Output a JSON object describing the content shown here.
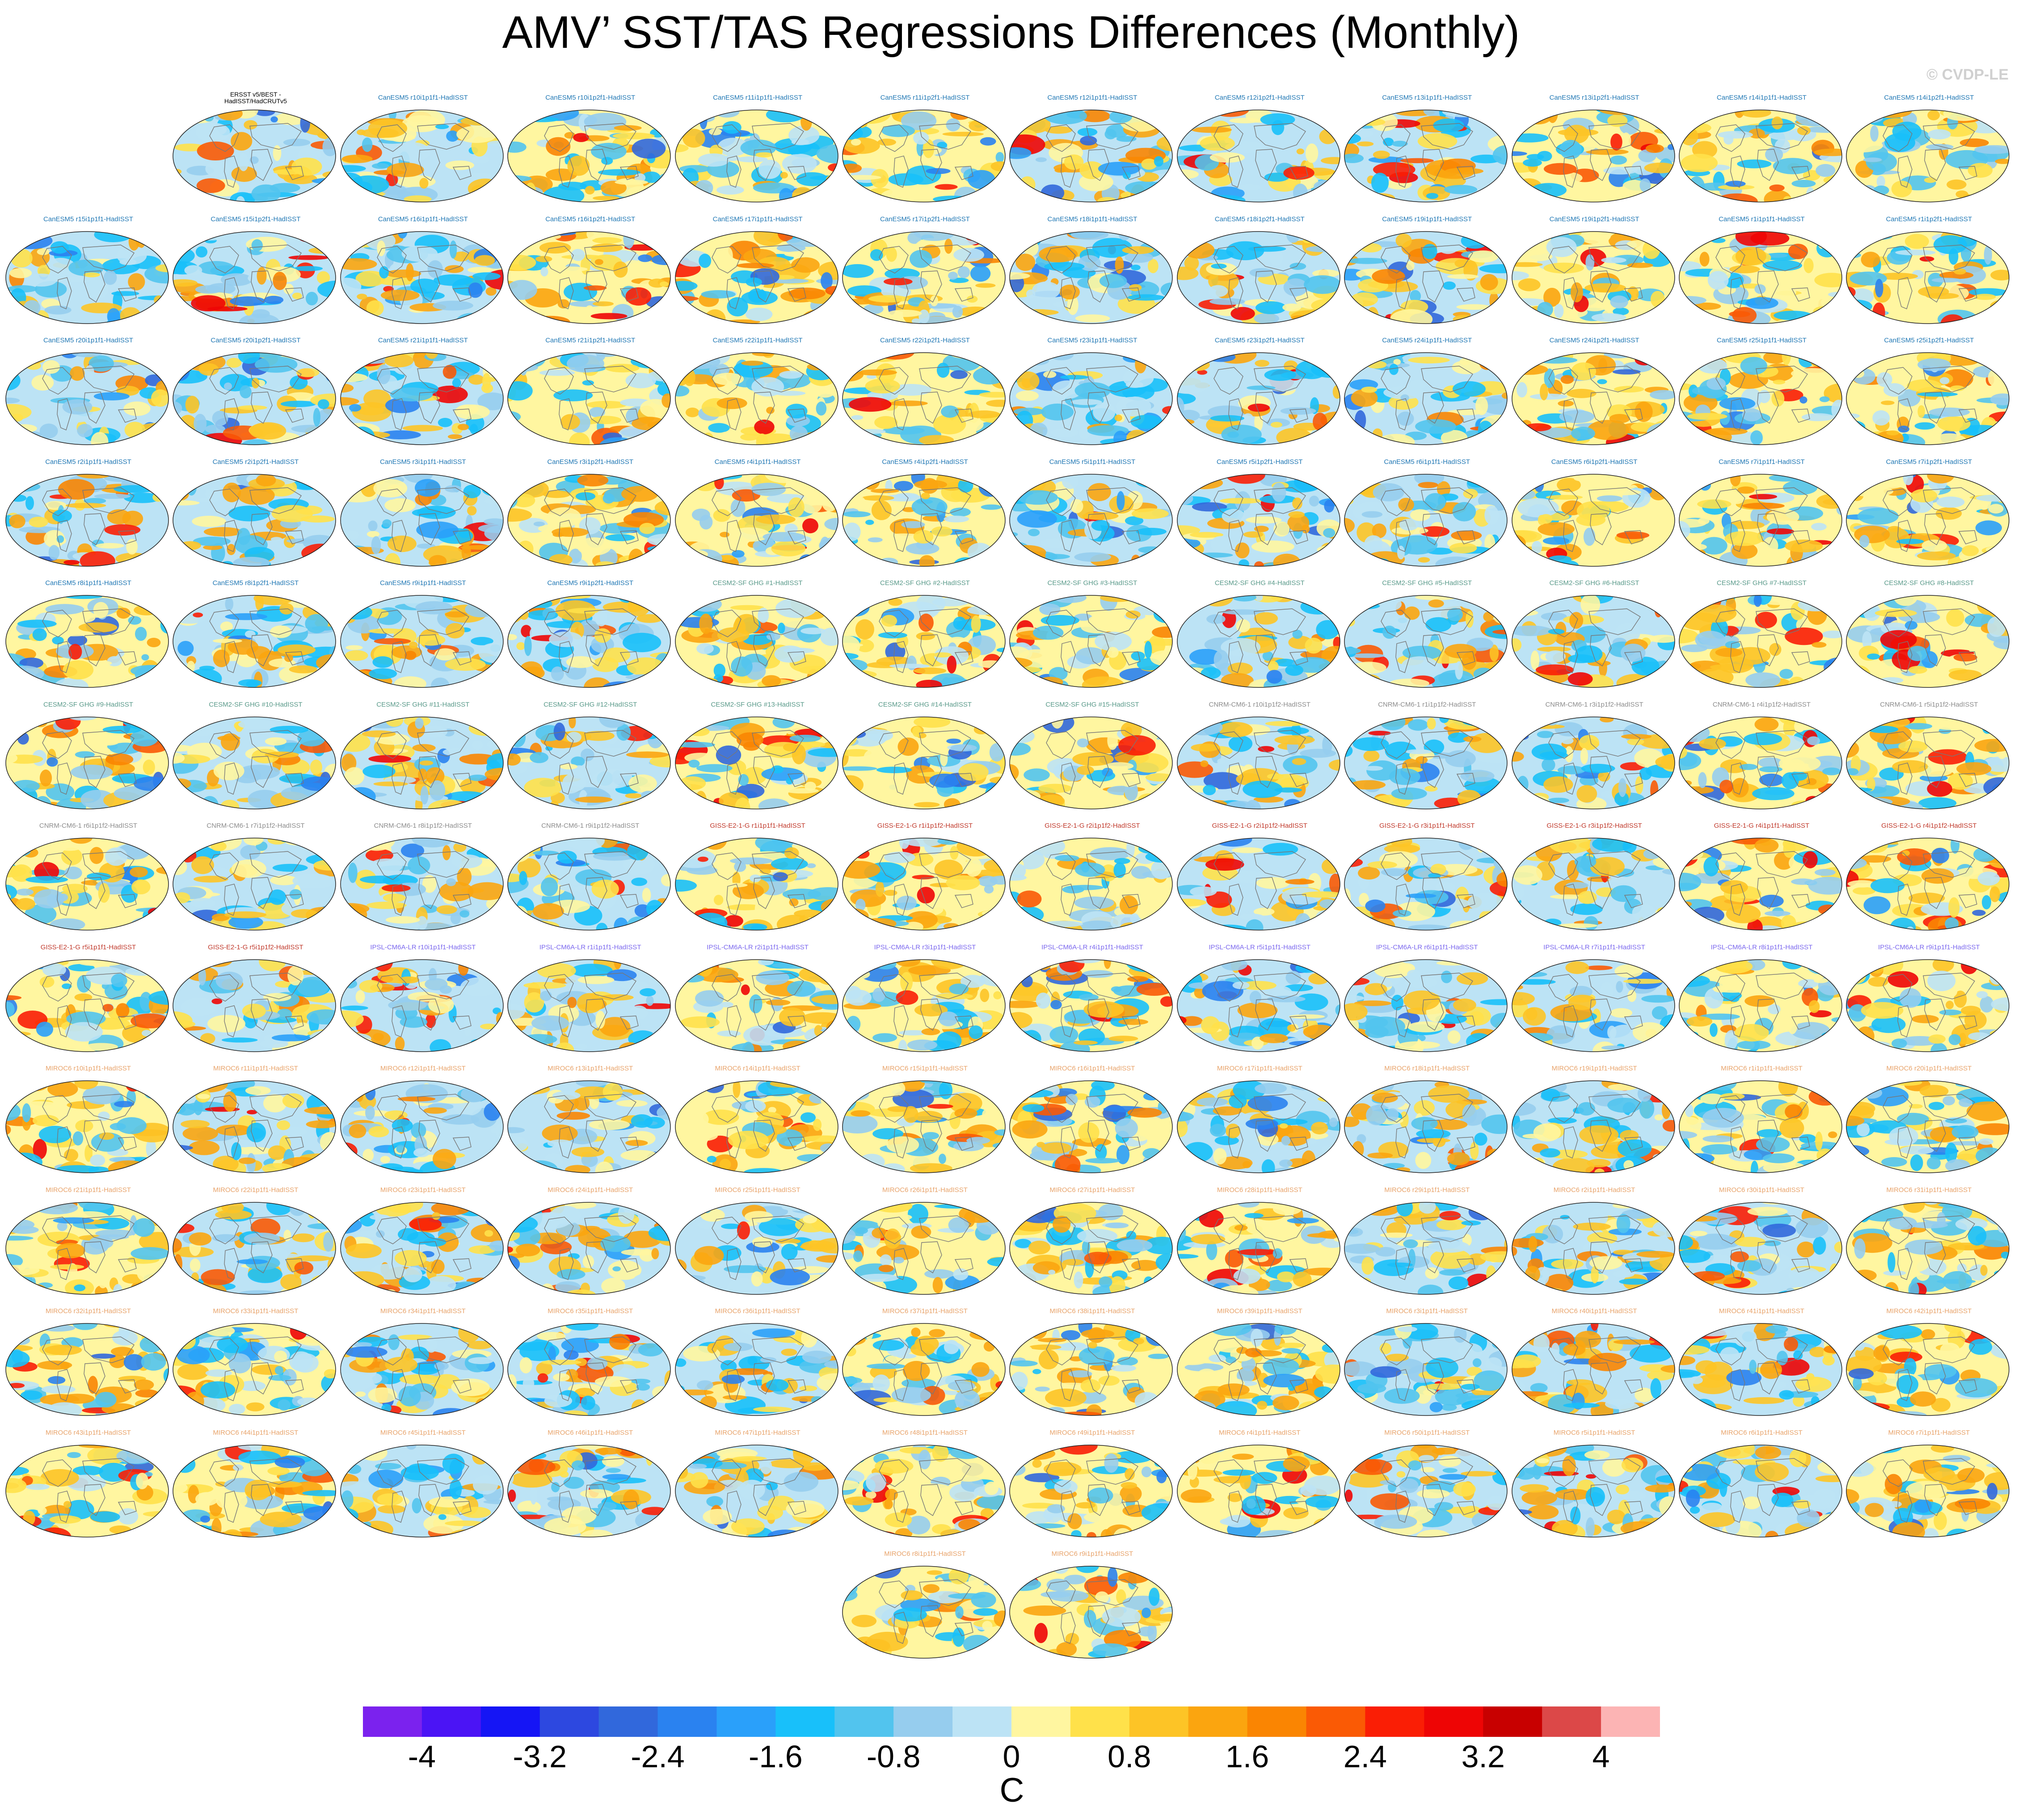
{
  "title": "AMV’ SST/TAS Regressions Differences (Monthly)",
  "watermark": "© CVDP-LE",
  "panels": [
    {
      "label": "ERSST v5/BEST -\nHadISST/HadCRUTv5",
      "color": "#000000",
      "obs": true
    },
    {
      "label": "CanESM5 r10i1p1f1-HadISST",
      "color": "#1f77b4"
    },
    {
      "label": "CanESM5 r10i1p2f1-HadISST",
      "color": "#1f77b4"
    },
    {
      "label": "CanESM5 r11i1p1f1-HadISST",
      "color": "#1f77b4"
    },
    {
      "label": "CanESM5 r11i1p2f1-HadISST",
      "color": "#1f77b4"
    },
    {
      "label": "CanESM5 r12i1p1f1-HadISST",
      "color": "#1f77b4"
    },
    {
      "label": "CanESM5 r12i1p2f1-HadISST",
      "color": "#1f77b4"
    },
    {
      "label": "CanESM5 r13i1p1f1-HadISST",
      "color": "#1f77b4"
    },
    {
      "label": "CanESM5 r13i1p2f1-HadISST",
      "color": "#1f77b4"
    },
    {
      "label": "CanESM5 r14i1p1f1-HadISST",
      "color": "#1f77b4"
    },
    {
      "label": "CanESM5 r14i1p2f1-HadISST",
      "color": "#1f77b4"
    },
    {
      "label": "CanESM5 r15i1p1f1-HadISST",
      "color": "#1f77b4"
    },
    {
      "label": "CanESM5 r15i1p2f1-HadISST",
      "color": "#1f77b4"
    },
    {
      "label": "CanESM5 r16i1p1f1-HadISST",
      "color": "#1f77b4"
    },
    {
      "label": "CanESM5 r16i1p2f1-HadISST",
      "color": "#1f77b4"
    },
    {
      "label": "CanESM5 r17i1p1f1-HadISST",
      "color": "#1f77b4"
    },
    {
      "label": "CanESM5 r17i1p2f1-HadISST",
      "color": "#1f77b4"
    },
    {
      "label": "CanESM5 r18i1p1f1-HadISST",
      "color": "#1f77b4"
    },
    {
      "label": "CanESM5 r18i1p2f1-HadISST",
      "color": "#1f77b4"
    },
    {
      "label": "CanESM5 r19i1p1f1-HadISST",
      "color": "#1f77b4"
    },
    {
      "label": "CanESM5 r19i1p2f1-HadISST",
      "color": "#1f77b4"
    },
    {
      "label": "CanESM5 r1i1p1f1-HadISST",
      "color": "#1f77b4"
    },
    {
      "label": "CanESM5 r1i1p2f1-HadISST",
      "color": "#1f77b4"
    },
    {
      "label": "CanESM5 r20i1p1f1-HadISST",
      "color": "#1f77b4"
    },
    {
      "label": "CanESM5 r20i1p2f1-HadISST",
      "color": "#1f77b4"
    },
    {
      "label": "CanESM5 r21i1p1f1-HadISST",
      "color": "#1f77b4"
    },
    {
      "label": "CanESM5 r21i1p2f1-HadISST",
      "color": "#1f77b4"
    },
    {
      "label": "CanESM5 r22i1p1f1-HadISST",
      "color": "#1f77b4"
    },
    {
      "label": "CanESM5 r22i1p2f1-HadISST",
      "color": "#1f77b4"
    },
    {
      "label": "CanESM5 r23i1p1f1-HadISST",
      "color": "#1f77b4"
    },
    {
      "label": "CanESM5 r23i1p2f1-HadISST",
      "color": "#1f77b4"
    },
    {
      "label": "CanESM5 r24i1p1f1-HadISST",
      "color": "#1f77b4"
    },
    {
      "label": "CanESM5 r24i1p2f1-HadISST",
      "color": "#1f77b4"
    },
    {
      "label": "CanESM5 r25i1p1f1-HadISST",
      "color": "#1f77b4"
    },
    {
      "label": "CanESM5 r25i1p2f1-HadISST",
      "color": "#1f77b4"
    },
    {
      "label": "CanESM5 r2i1p1f1-HadISST",
      "color": "#1f77b4"
    },
    {
      "label": "CanESM5 r2i1p2f1-HadISST",
      "color": "#1f77b4"
    },
    {
      "label": "CanESM5 r3i1p1f1-HadISST",
      "color": "#1f77b4"
    },
    {
      "label": "CanESM5 r3i1p2f1-HadISST",
      "color": "#1f77b4"
    },
    {
      "label": "CanESM5 r4i1p1f1-HadISST",
      "color": "#1f77b4"
    },
    {
      "label": "CanESM5 r4i1p2f1-HadISST",
      "color": "#1f77b4"
    },
    {
      "label": "CanESM5 r5i1p1f1-HadISST",
      "color": "#1f77b4"
    },
    {
      "label": "CanESM5 r5i1p2f1-HadISST",
      "color": "#1f77b4"
    },
    {
      "label": "CanESM5 r6i1p1f1-HadISST",
      "color": "#1f77b4"
    },
    {
      "label": "CanESM5 r6i1p2f1-HadISST",
      "color": "#1f77b4"
    },
    {
      "label": "CanESM5 r7i1p1f1-HadISST",
      "color": "#1f77b4"
    },
    {
      "label": "CanESM5 r7i1p2f1-HadISST",
      "color": "#1f77b4"
    },
    {
      "label": "CanESM5 r8i1p1f1-HadISST",
      "color": "#1f77b4"
    },
    {
      "label": "CanESM5 r8i1p2f1-HadISST",
      "color": "#1f77b4"
    },
    {
      "label": "CanESM5 r9i1p1f1-HadISST",
      "color": "#1f77b4"
    },
    {
      "label": "CanESM5 r9i1p2f1-HadISST",
      "color": "#1f77b4"
    },
    {
      "label": "CESM2-SF GHG #1-HadISST",
      "color": "#5a9a8a"
    },
    {
      "label": "CESM2-SF GHG #2-HadISST",
      "color": "#5a9a8a"
    },
    {
      "label": "CESM2-SF GHG #3-HadISST",
      "color": "#5a9a8a"
    },
    {
      "label": "CESM2-SF GHG #4-HadISST",
      "color": "#5a9a8a"
    },
    {
      "label": "CESM2-SF GHG #5-HadISST",
      "color": "#5a9a8a"
    },
    {
      "label": "CESM2-SF GHG #6-HadISST",
      "color": "#5a9a8a"
    },
    {
      "label": "CESM2-SF GHG #7-HadISST",
      "color": "#5a9a8a"
    },
    {
      "label": "CESM2-SF GHG #8-HadISST",
      "color": "#5a9a8a"
    },
    {
      "label": "CESM2-SF GHG #9-HadISST",
      "color": "#5a9a8a"
    },
    {
      "label": "CESM2-SF GHG #10-HadISST",
      "color": "#5a9a8a"
    },
    {
      "label": "CESM2-SF GHG #11-HadISST",
      "color": "#5a9a8a"
    },
    {
      "label": "CESM2-SF GHG #12-HadISST",
      "color": "#5a9a8a"
    },
    {
      "label": "CESM2-SF GHG #13-HadISST",
      "color": "#5a9a8a"
    },
    {
      "label": "CESM2-SF GHG #14-HadISST",
      "color": "#5a9a8a"
    },
    {
      "label": "CESM2-SF GHG #15-HadISST",
      "color": "#5a9a8a"
    },
    {
      "label": "CNRM-CM6-1 r10i1p1f2-HadISST",
      "color": "#8c8c8c"
    },
    {
      "label": "CNRM-CM6-1 r1i1p1f2-HadISST",
      "color": "#8c8c8c"
    },
    {
      "label": "CNRM-CM6-1 r3i1p1f2-HadISST",
      "color": "#8c8c8c"
    },
    {
      "label": "CNRM-CM6-1 r4i1p1f2-HadISST",
      "color": "#8c8c8c"
    },
    {
      "label": "CNRM-CM6-1 r5i1p1f2-HadISST",
      "color": "#8c8c8c"
    },
    {
      "label": "CNRM-CM6-1 r6i1p1f2-HadISST",
      "color": "#8c8c8c"
    },
    {
      "label": "CNRM-CM6-1 r7i1p1f2-HadISST",
      "color": "#8c8c8c"
    },
    {
      "label": "CNRM-CM6-1 r8i1p1f2-HadISST",
      "color": "#8c8c8c"
    },
    {
      "label": "CNRM-CM6-1 r9i1p1f2-HadISST",
      "color": "#8c8c8c"
    },
    {
      "label": "GISS-E2-1-G r1i1p1f1-HadISST",
      "color": "#c0392b"
    },
    {
      "label": "GISS-E2-1-G r1i1p1f2-HadISST",
      "color": "#c0392b"
    },
    {
      "label": "GISS-E2-1-G r2i1p1f2-HadISST",
      "color": "#c0392b"
    },
    {
      "label": "GISS-E2-1-G r2i1p1f2-HadISST",
      "color": "#c0392b"
    },
    {
      "label": "GISS-E2-1-G r3i1p1f1-HadISST",
      "color": "#c0392b"
    },
    {
      "label": "GISS-E2-1-G r3i1p1f2-HadISST",
      "color": "#c0392b"
    },
    {
      "label": "GISS-E2-1-G r4i1p1f1-HadISST",
      "color": "#c0392b"
    },
    {
      "label": "GISS-E2-1-G r4i1p1f2-HadISST",
      "color": "#c0392b"
    },
    {
      "label": "GISS-E2-1-G r5i1p1f1-HadISST",
      "color": "#c0392b"
    },
    {
      "label": "GISS-E2-1-G r5i1p1f2-HadISST",
      "color": "#c0392b"
    },
    {
      "label": "IPSL-CM6A-LR r10i1p1f1-HadISST",
      "color": "#7b68ee"
    },
    {
      "label": "IPSL-CM6A-LR r1i1p1f1-HadISST",
      "color": "#7b68ee"
    },
    {
      "label": "IPSL-CM6A-LR r2i1p1f1-HadISST",
      "color": "#7b68ee"
    },
    {
      "label": "IPSL-CM6A-LR r3i1p1f1-HadISST",
      "color": "#7b68ee"
    },
    {
      "label": "IPSL-CM6A-LR r4i1p1f1-HadISST",
      "color": "#7b68ee"
    },
    {
      "label": "IPSL-CM6A-LR r5i1p1f1-HadISST",
      "color": "#7b68ee"
    },
    {
      "label": "IPSL-CM6A-LR r6i1p1f1-HadISST",
      "color": "#7b68ee"
    },
    {
      "label": "IPSL-CM6A-LR r7i1p1f1-HadISST",
      "color": "#7b68ee"
    },
    {
      "label": "IPSL-CM6A-LR r8i1p1f1-HadISST",
      "color": "#7b68ee"
    },
    {
      "label": "IPSL-CM6A-LR r9i1p1f1-HadISST",
      "color": "#7b68ee"
    },
    {
      "label": "MIROC6 r10i1p1f1-HadISST",
      "color": "#e8a36a"
    },
    {
      "label": "MIROC6 r11i1p1f1-HadISST",
      "color": "#e8a36a"
    },
    {
      "label": "MIROC6 r12i1p1f1-HadISST",
      "color": "#e8a36a"
    },
    {
      "label": "MIROC6 r13i1p1f1-HadISST",
      "color": "#e8a36a"
    },
    {
      "label": "MIROC6 r14i1p1f1-HadISST",
      "color": "#e8a36a"
    },
    {
      "label": "MIROC6 r15i1p1f1-HadISST",
      "color": "#e8a36a"
    },
    {
      "label": "MIROC6 r16i1p1f1-HadISST",
      "color": "#e8a36a"
    },
    {
      "label": "MIROC6 r17i1p1f1-HadISST",
      "color": "#e8a36a"
    },
    {
      "label": "MIROC6 r18i1p1f1-HadISST",
      "color": "#e8a36a"
    },
    {
      "label": "MIROC6 r19i1p1f1-HadISST",
      "color": "#e8a36a"
    },
    {
      "label": "MIROC6 r1i1p1f1-HadISST",
      "color": "#e8a36a"
    },
    {
      "label": "MIROC6 r20i1p1f1-HadISST",
      "color": "#e8a36a"
    },
    {
      "label": "MIROC6 r21i1p1f1-HadISST",
      "color": "#e8a36a"
    },
    {
      "label": "MIROC6 r22i1p1f1-HadISST",
      "color": "#e8a36a"
    },
    {
      "label": "MIROC6 r23i1p1f1-HadISST",
      "color": "#e8a36a"
    },
    {
      "label": "MIROC6 r24i1p1f1-HadISST",
      "color": "#e8a36a"
    },
    {
      "label": "MIROC6 r25i1p1f1-HadISST",
      "color": "#e8a36a"
    },
    {
      "label": "MIROC6 r26i1p1f1-HadISST",
      "color": "#e8a36a"
    },
    {
      "label": "MIROC6 r27i1p1f1-HadISST",
      "color": "#e8a36a"
    },
    {
      "label": "MIROC6 r28i1p1f1-HadISST",
      "color": "#e8a36a"
    },
    {
      "label": "MIROC6 r29i1p1f1-HadISST",
      "color": "#e8a36a"
    },
    {
      "label": "MIROC6 r2i1p1f1-HadISST",
      "color": "#e8a36a"
    },
    {
      "label": "MIROC6 r30i1p1f1-HadISST",
      "color": "#e8a36a"
    },
    {
      "label": "MIROC6 r31i1p1f1-HadISST",
      "color": "#e8a36a"
    },
    {
      "label": "MIROC6 r32i1p1f1-HadISST",
      "color": "#e8a36a"
    },
    {
      "label": "MIROC6 r33i1p1f1-HadISST",
      "color": "#e8a36a"
    },
    {
      "label": "MIROC6 r34i1p1f1-HadISST",
      "color": "#e8a36a"
    },
    {
      "label": "MIROC6 r35i1p1f1-HadISST",
      "color": "#e8a36a"
    },
    {
      "label": "MIROC6 r36i1p1f1-HadISST",
      "color": "#e8a36a"
    },
    {
      "label": "MIROC6 r37i1p1f1-HadISST",
      "color": "#e8a36a"
    },
    {
      "label": "MIROC6 r38i1p1f1-HadISST",
      "color": "#e8a36a"
    },
    {
      "label": "MIROC6 r39i1p1f1-HadISST",
      "color": "#e8a36a"
    },
    {
      "label": "MIROC6 r3i1p1f1-HadISST",
      "color": "#e8a36a"
    },
    {
      "label": "MIROC6 r40i1p1f1-HadISST",
      "color": "#e8a36a"
    },
    {
      "label": "MIROC6 r41i1p1f1-HadISST",
      "color": "#e8a36a"
    },
    {
      "label": "MIROC6 r42i1p1f1-HadISST",
      "color": "#e8a36a"
    },
    {
      "label": "MIROC6 r43i1p1f1-HadISST",
      "color": "#e8a36a"
    },
    {
      "label": "MIROC6 r44i1p1f1-HadISST",
      "color": "#e8a36a"
    },
    {
      "label": "MIROC6 r45i1p1f1-HadISST",
      "color": "#e8a36a"
    },
    {
      "label": "MIROC6 r46i1p1f1-HadISST",
      "color": "#e8a36a"
    },
    {
      "label": "MIROC6 r47i1p1f1-HadISST",
      "color": "#e8a36a"
    },
    {
      "label": "MIROC6 r48i1p1f1-HadISST",
      "color": "#e8a36a"
    },
    {
      "label": "MIROC6 r49i1p1f1-HadISST",
      "color": "#e8a36a"
    },
    {
      "label": "MIROC6 r4i1p1f1-HadISST",
      "color": "#e8a36a"
    },
    {
      "label": "MIROC6 r50i1p1f1-HadISST",
      "color": "#e8a36a"
    },
    {
      "label": "MIROC6 r5i1p1f1-HadISST",
      "color": "#e8a36a"
    },
    {
      "label": "MIROC6 r6i1p1f1-HadISST",
      "color": "#e8a36a"
    },
    {
      "label": "MIROC6 r7i1p1f1-HadISST",
      "color": "#e8a36a"
    },
    {
      "label": "MIROC6 r8i1p1f1-HadISST",
      "color": "#e8a36a"
    },
    {
      "label": "MIROC6 r9i1p1f1-HadISST",
      "color": "#e8a36a"
    }
  ],
  "colorbar": {
    "colors": [
      "#7b22ee",
      "#4b14f5",
      "#1515f5",
      "#2d48e0",
      "#3168dc",
      "#2a82f0",
      "#2aa0fa",
      "#18c0fa",
      "#52c4ee",
      "#96cdee",
      "#bce3f5",
      "#fff6a0",
      "#ffe14a",
      "#fdc426",
      "#fba50f",
      "#fa8502",
      "#fa5a05",
      "#fa1e05",
      "#ee0505",
      "#c80000",
      "#dc4848",
      "#fcb4b4"
    ],
    "tick_labels": [
      "-4",
      "-3.2",
      "-2.4",
      "-1.6",
      "-0.8",
      "0",
      "0.8",
      "1.6",
      "2.4",
      "3.2",
      "4"
    ],
    "unit": "C"
  }
}
